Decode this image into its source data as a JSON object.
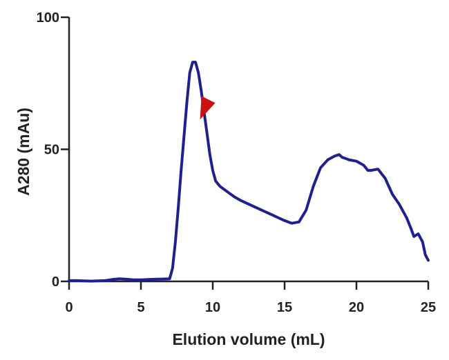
{
  "chart_data": {
    "type": "line",
    "xlabel": "Elution volume (mL)",
    "ylabel": "A280 (mAu)",
    "xlim": [
      0,
      25
    ],
    "ylim": [
      0,
      100
    ],
    "x_ticks": [
      "0",
      "5",
      "10",
      "15",
      "20",
      "25"
    ],
    "y_ticks": [
      "0",
      "50",
      "100"
    ],
    "grid": false,
    "colors": {
      "line": "#1f1f8f",
      "marker": "#cc1111",
      "axis": "#222222"
    },
    "series": [
      {
        "x": [
          0,
          0.5,
          1,
          1.5,
          2,
          2.5,
          3,
          3.5,
          4,
          4.5,
          5,
          5.5,
          6,
          6.5,
          7,
          7.2,
          7.4,
          7.6,
          7.8,
          8,
          8.2,
          8.4,
          8.6,
          8.8,
          9,
          9.2,
          9.4,
          9.6,
          9.8,
          10,
          10.2,
          10.5,
          11,
          11.5,
          12,
          13,
          14,
          15,
          15.5,
          16,
          16.5,
          17,
          17.5,
          18,
          18.5,
          18.8,
          19,
          19.5,
          20,
          20.5,
          20.8,
          21,
          21.5,
          22,
          22.5,
          23,
          23.5,
          23.8,
          24,
          24.3,
          24.6,
          24.8,
          25
        ],
        "values": [
          0.3,
          0.3,
          0.2,
          0.1,
          0.2,
          0.3,
          0.7,
          1.0,
          0.8,
          0.6,
          0.6,
          0.7,
          0.8,
          0.9,
          1.0,
          5,
          15,
          28,
          42,
          55,
          68,
          79,
          83,
          83,
          79,
          72,
          64,
          56,
          48,
          42,
          38,
          36,
          34,
          32,
          30.5,
          28,
          25.5,
          23,
          22,
          22.5,
          27,
          36,
          43,
          46,
          47.5,
          48,
          47,
          46,
          45.5,
          44,
          42,
          42,
          42.5,
          39,
          33,
          29,
          24,
          20,
          17,
          18,
          15,
          10,
          8
        ]
      }
    ],
    "annotation": {
      "type": "red-triangle-marker",
      "x": 9.5,
      "y": 66
    }
  }
}
